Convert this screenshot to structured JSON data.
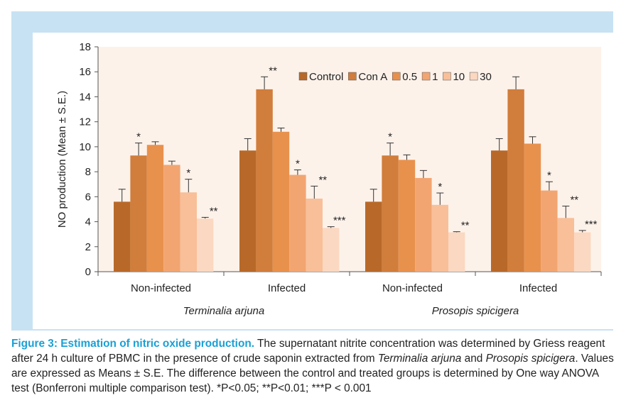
{
  "chart_data": {
    "type": "bar",
    "ylabel": "NO production  (Mean ± S.E.)",
    "ylim": [
      0,
      18
    ],
    "yticks": [
      "0",
      "2",
      "4",
      "6",
      "8",
      "10",
      "12",
      "14",
      "16",
      "18"
    ],
    "ytick_values": [
      0,
      2,
      4,
      6,
      8,
      10,
      12,
      14,
      16,
      18
    ],
    "grid": false,
    "legend_position": "top-right",
    "categories": [
      "Non-infected",
      "Infected",
      "Non-infected",
      "Infected"
    ],
    "category_groups": [
      {
        "label": "Terminalia arjuna",
        "categories": [
          0,
          1
        ]
      },
      {
        "label": "Prosopis spicigera",
        "categories": [
          2,
          3
        ]
      }
    ],
    "series": [
      {
        "name": "Control",
        "color": "#b8692a",
        "values": [
          5.6,
          9.7,
          5.6,
          9.7
        ],
        "errors": [
          1.0,
          0.95,
          1.0,
          0.95
        ],
        "sig": [
          "",
          "",
          "",
          ""
        ]
      },
      {
        "name": "Con A",
        "color": "#d17d3b",
        "values": [
          9.3,
          14.6,
          9.3,
          14.6
        ],
        "errors": [
          1.0,
          1.0,
          1.0,
          1.0
        ],
        "sig": [
          "*",
          "**",
          "*",
          ""
        ]
      },
      {
        "name": "0.5",
        "color": "#e8914d",
        "values": [
          10.15,
          11.2,
          8.95,
          10.25
        ],
        "errors": [
          0.25,
          0.3,
          0.4,
          0.55
        ],
        "sig": [
          "",
          "",
          "",
          ""
        ]
      },
      {
        "name": "1",
        "color": "#f2a571",
        "values": [
          8.55,
          7.75,
          7.5,
          6.5
        ],
        "errors": [
          0.3,
          0.4,
          0.6,
          0.7
        ],
        "sig": [
          "",
          "*",
          "",
          "*"
        ]
      },
      {
        "name": "10",
        "color": "#f8bf99",
        "values": [
          6.35,
          5.85,
          5.35,
          4.3
        ],
        "errors": [
          1.05,
          1.0,
          0.95,
          0.95
        ],
        "sig": [
          "*",
          "**",
          "*",
          "**"
        ]
      },
      {
        "name": "30",
        "color": "#fbd8c1",
        "values": [
          4.25,
          3.5,
          3.15,
          3.15
        ],
        "errors": [
          0.1,
          0.1,
          0.05,
          0.15
        ],
        "sig": [
          "**",
          "***",
          "**",
          "***"
        ]
      }
    ]
  },
  "caption": {
    "title": "Figure 3: Estimation of nitric oxide production.",
    "text1": " The supernatant nitrite concentration was determined by Griess reagent after 24 h culture of PBMC in the presence of crude saponin extracted from ",
    "species1": "Terminalia arjuna",
    "text2": " and ",
    "species2": "Prosopis spicigera",
    "text3": ". Values are expressed as Means ± S.E. The difference between the control and treated groups is determined by One way ANOVA test (Bonferroni multiple comparison test). *P<0.05; **P<0.01; ***P < 0.001"
  },
  "colors": {
    "frame": "#c7e2f3",
    "plot_background": "#fdf2ea",
    "caption_title": "#1aa0d4"
  }
}
